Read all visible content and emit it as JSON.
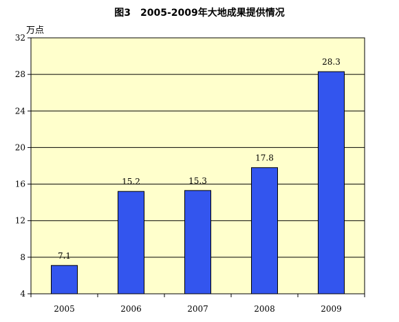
{
  "chart_data": {
    "type": "bar",
    "title": "图3　2005-2009年大地成果提供情况",
    "ylabel": "万点",
    "xlabel": "",
    "categories": [
      "2005",
      "2006",
      "2007",
      "2008",
      "2009"
    ],
    "values": [
      7.1,
      15.2,
      15.3,
      17.8,
      28.3
    ],
    "data_labels": [
      "7.1",
      "15.2",
      "15.3",
      "17.8",
      "28.3"
    ],
    "ylim": [
      4,
      32
    ],
    "yticks": [
      4,
      8,
      12,
      16,
      20,
      24,
      28,
      32
    ],
    "grid": true,
    "legend": "none",
    "colors": {
      "bar": "#3355ee",
      "bar_border": "#000000",
      "plot_background": "#ffffcc",
      "grid": "#000000"
    }
  }
}
